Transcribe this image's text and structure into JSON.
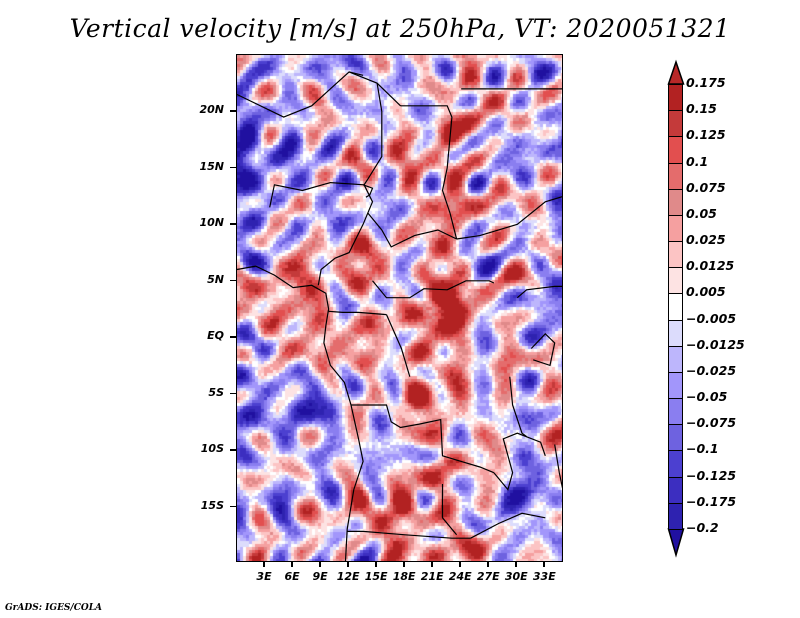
{
  "title": "Vertical velocity [m/s] at 250hPa, VT: 2020051321",
  "credit": "GrADS: IGES/COLA",
  "map": {
    "variable": "Vertical velocity",
    "units": "m/s",
    "level": "250hPa",
    "valid_time": "2020051321",
    "lon_range": [
      0,
      35
    ],
    "lat_range": [
      -20,
      25
    ],
    "lat_ticks": [
      {
        "value": 20,
        "label": "20N"
      },
      {
        "value": 15,
        "label": "15N"
      },
      {
        "value": 10,
        "label": "10N"
      },
      {
        "value": 5,
        "label": "5N"
      },
      {
        "value": 0,
        "label": "EQ"
      },
      {
        "value": -5,
        "label": "5S"
      },
      {
        "value": -10,
        "label": "10S"
      },
      {
        "value": -15,
        "label": "15S"
      }
    ],
    "lon_ticks": [
      {
        "value": 3,
        "label": "3E"
      },
      {
        "value": 6,
        "label": "6E"
      },
      {
        "value": 9,
        "label": "9E"
      },
      {
        "value": 12,
        "label": "12E"
      },
      {
        "value": 15,
        "label": "15E"
      },
      {
        "value": 18,
        "label": "18E"
      },
      {
        "value": 21,
        "label": "21E"
      },
      {
        "value": 24,
        "label": "24E"
      },
      {
        "value": 27,
        "label": "27E"
      },
      {
        "value": 30,
        "label": "30E"
      },
      {
        "value": 33,
        "label": "33E"
      }
    ]
  },
  "colorbar": {
    "levels": [
      {
        "label": "0.175",
        "color": "#b22222"
      },
      {
        "label": "0.15",
        "color": "#c43a3a"
      },
      {
        "label": "0.125",
        "color": "#e24f4f"
      },
      {
        "label": "0.1",
        "color": "#e46c6c"
      },
      {
        "label": "0.075",
        "color": "#e08a8a"
      },
      {
        "label": "0.05",
        "color": "#f5a0a0"
      },
      {
        "label": "0.025",
        "color": "#fcc4c4"
      },
      {
        "label": "0.0125",
        "color": "#fde3e3"
      },
      {
        "label": "0.005",
        "color": "#ffffff"
      },
      {
        "label": "-0.005",
        "color": "#dcdcfc"
      },
      {
        "label": "-0.0125",
        "color": "#bdb6fc"
      },
      {
        "label": "-0.025",
        "color": "#a296fb"
      },
      {
        "label": "-0.05",
        "color": "#8a7ef0"
      },
      {
        "label": "-0.075",
        "color": "#6e62e0"
      },
      {
        "label": "-0.1",
        "color": "#4c40d0"
      },
      {
        "label": "-0.125",
        "color": "#3c2ec0"
      },
      {
        "label": "-0.175",
        "color": "#2e22b0"
      },
      {
        "label": "-0.2",
        "color": "#2010a0"
      }
    ],
    "top_arrow_color": "#b82828",
    "bottom_arrow_color": "#2010a0"
  }
}
